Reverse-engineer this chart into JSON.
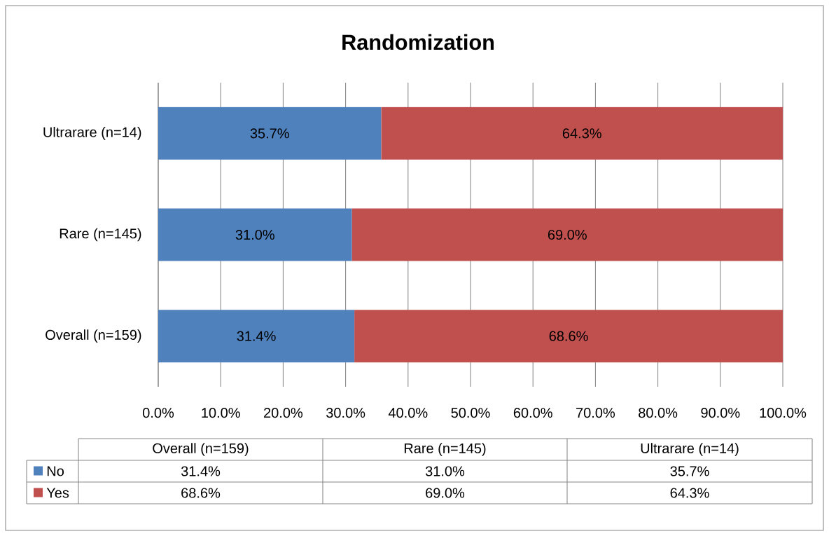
{
  "chart_data": {
    "type": "bar",
    "orientation": "horizontal",
    "stacked": true,
    "title": "Randomization",
    "categories": [
      "Ultrarare (n=14)",
      "Rare (n=145)",
      "Overall (n=159)"
    ],
    "series": [
      {
        "name": "No",
        "color": "#4f81bd",
        "values": [
          35.7,
          31.0,
          31.4
        ],
        "value_labels": [
          "35.7%",
          "31.0%",
          "31.4%"
        ]
      },
      {
        "name": "Yes",
        "color": "#c0504d",
        "values": [
          64.3,
          69.0,
          68.6
        ],
        "value_labels": [
          "64.3%",
          "69.0%",
          "68.6%"
        ]
      }
    ],
    "xlim": [
      0,
      100
    ],
    "xticks": [
      {
        "value": 0,
        "label": "0.0%"
      },
      {
        "value": 10,
        "label": "10.0%"
      },
      {
        "value": 20,
        "label": "20.0%"
      },
      {
        "value": 30,
        "label": "30.0%"
      },
      {
        "value": 40,
        "label": "40.0%"
      },
      {
        "value": 50,
        "label": "50.0%"
      },
      {
        "value": 60,
        "label": "60.0%"
      },
      {
        "value": 70,
        "label": "70.0%"
      },
      {
        "value": 80,
        "label": "80.0%"
      },
      {
        "value": 90,
        "label": "90.0%"
      },
      {
        "value": 100,
        "label": "100.0%"
      }
    ],
    "grid": "x",
    "legend": "bottom"
  }
}
